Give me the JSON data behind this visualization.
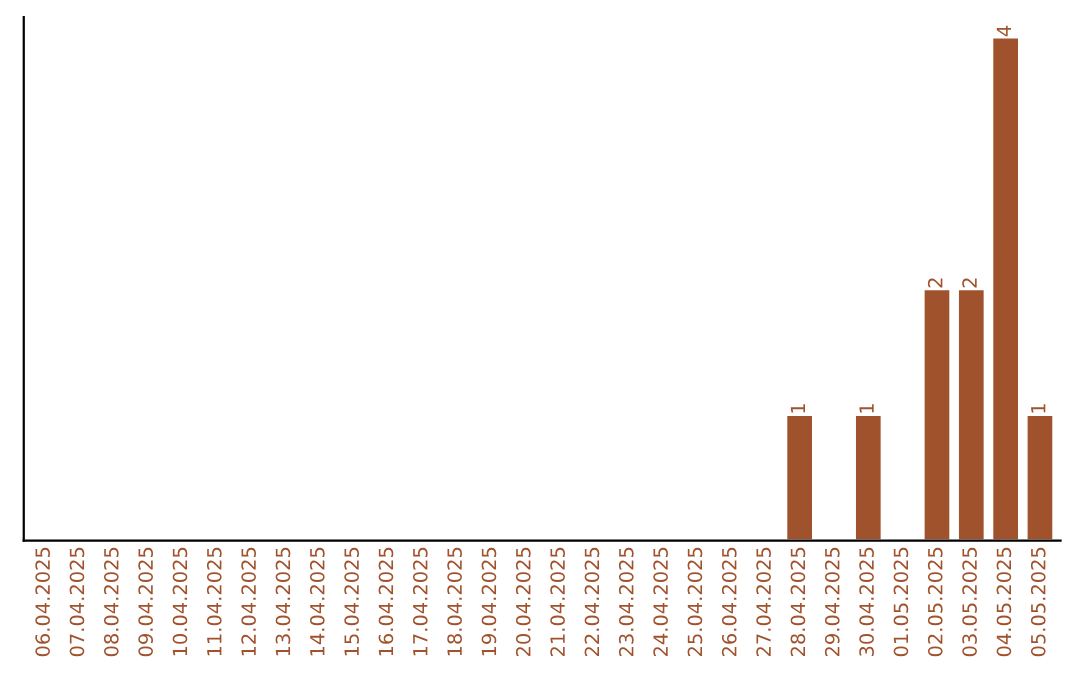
{
  "chart_data": {
    "type": "bar",
    "categories": [
      "06.04.2025",
      "07.04.2025",
      "08.04.2025",
      "09.04.2025",
      "10.04.2025",
      "11.04.2025",
      "12.04.2025",
      "13.04.2025",
      "14.04.2025",
      "15.04.2025",
      "16.04.2025",
      "17.04.2025",
      "18.04.2025",
      "19.04.2025",
      "20.04.2025",
      "21.04.2025",
      "22.04.2025",
      "23.04.2025",
      "24.04.2025",
      "25.04.2025",
      "26.04.2025",
      "27.04.2025",
      "28.04.2025",
      "29.04.2025",
      "30.04.2025",
      "01.05.2025",
      "02.05.2025",
      "03.05.2025",
      "04.05.2025",
      "05.05.2025"
    ],
    "values": [
      null,
      null,
      null,
      null,
      null,
      null,
      null,
      null,
      null,
      null,
      null,
      null,
      null,
      null,
      null,
      null,
      null,
      null,
      null,
      null,
      null,
      null,
      1,
      null,
      1,
      null,
      2,
      2,
      4,
      1
    ],
    "data_labels": true,
    "color": "#a0522d",
    "grid": false,
    "legend": false
  }
}
